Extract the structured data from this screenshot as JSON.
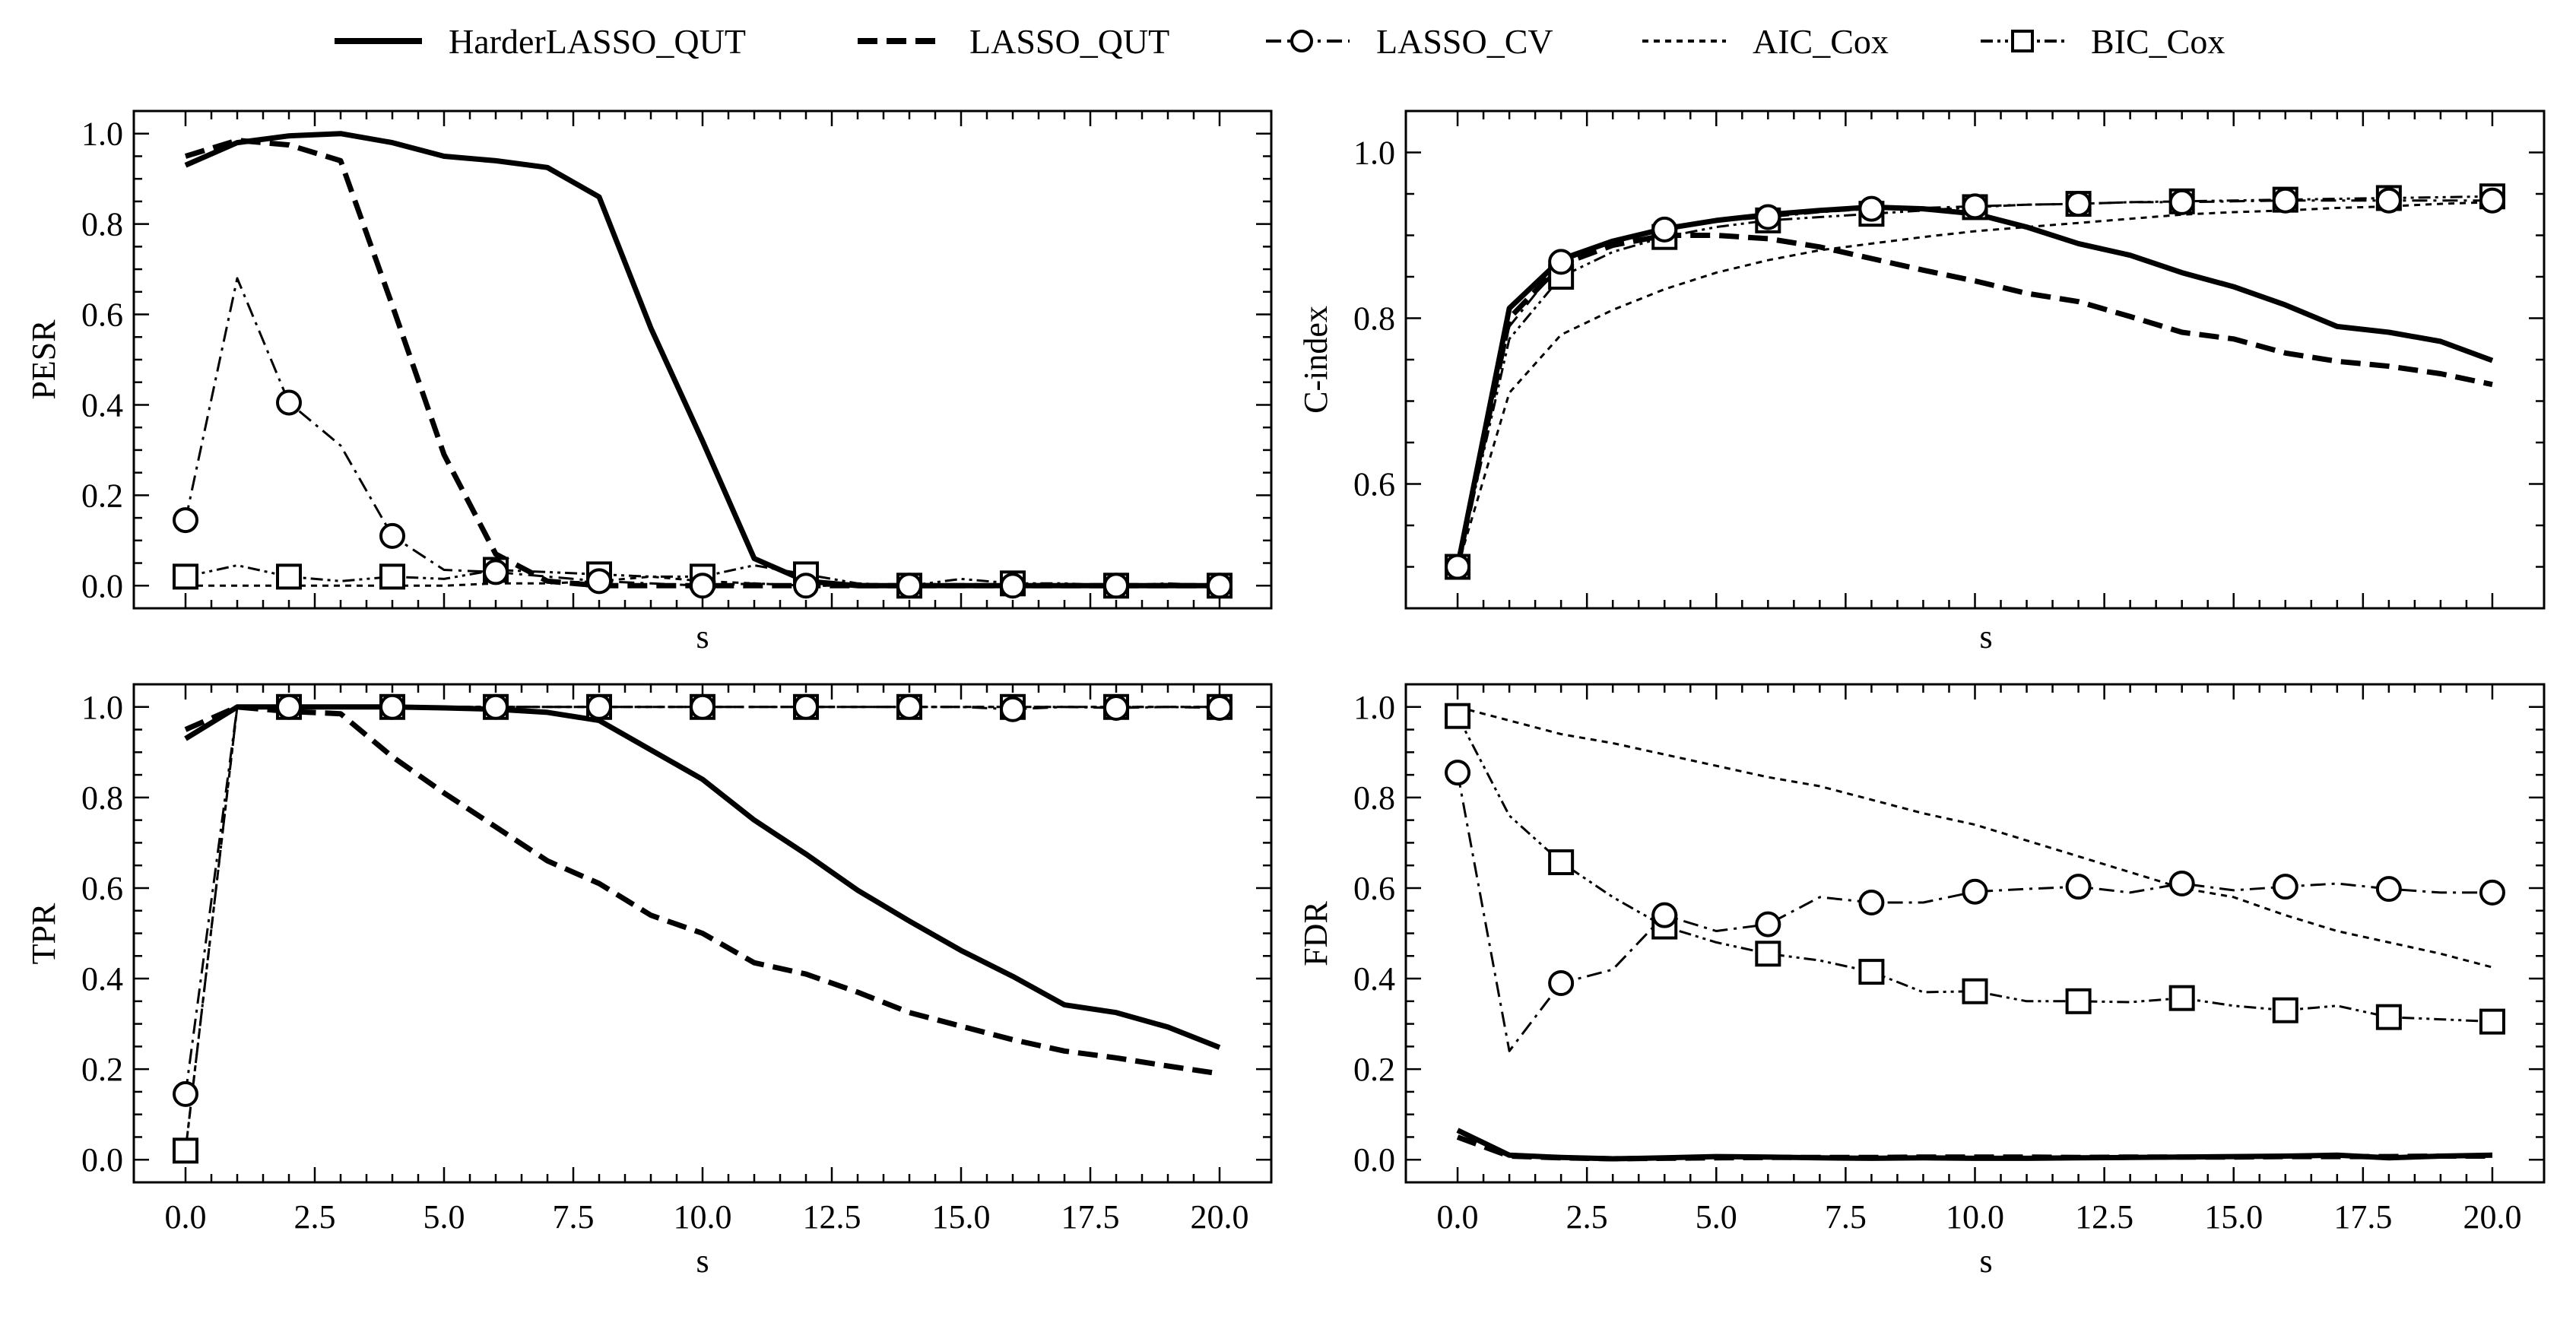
{
  "legend": {
    "position": "top-center",
    "entries": [
      {
        "key": "harder",
        "label": "HarderLASSO_QUT"
      },
      {
        "key": "lqut",
        "label": "LASSO_QUT"
      },
      {
        "key": "lcv",
        "label": "LASSO_CV"
      },
      {
        "key": "aic",
        "label": "AIC_Cox"
      },
      {
        "key": "bic",
        "label": "BIC_Cox"
      }
    ]
  },
  "chart_data": [
    {
      "id": "pesr",
      "type": "line",
      "title": "",
      "xlabel": "s",
      "ylabel": "PESR",
      "xlim": [
        -1,
        21
      ],
      "ylim": [
        -0.05,
        1.05
      ],
      "xticks": [],
      "xtick_labels": [],
      "yticks": [
        0.0,
        0.2,
        0.4,
        0.6,
        0.8,
        1.0
      ],
      "ytick_labels": [
        "0.0",
        "0.2",
        "0.4",
        "0.6",
        "0.8",
        "1.0"
      ],
      "grid": false,
      "x": [
        0,
        1,
        2,
        3,
        4,
        5,
        6,
        7,
        8,
        9,
        10,
        11,
        12,
        13,
        14,
        15,
        16,
        17,
        18,
        19,
        20
      ],
      "series": [
        {
          "name": "HarderLASSO_QUT",
          "key": "harder",
          "values": [
            0.93,
            0.98,
            0.995,
            1.0,
            0.98,
            0.95,
            0.94,
            0.925,
            0.86,
            0.57,
            0.32,
            0.06,
            0.01,
            0.0,
            0.0,
            0.0,
            0.0,
            0.0,
            0.0,
            0.0,
            0.0
          ]
        },
        {
          "name": "LASSO_QUT",
          "key": "lqut",
          "values": [
            0.95,
            0.985,
            0.975,
            0.94,
            0.62,
            0.29,
            0.07,
            0.01,
            0.0,
            0.0,
            0.0,
            0.0,
            0.0,
            0.0,
            0.0,
            0.0,
            0.0,
            0.0,
            0.0,
            0.0,
            0.0
          ]
        },
        {
          "name": "LASSO_CV",
          "key": "lcv",
          "values": [
            0.145,
            0.68,
            0.405,
            0.31,
            0.11,
            0.035,
            0.03,
            0.02,
            0.01,
            0.005,
            0.0,
            0.005,
            0.0,
            0.0,
            0.0,
            0.0,
            0.0,
            0.0,
            0.0,
            0.0,
            0.0
          ]
        },
        {
          "name": "AIC_Cox",
          "key": "aic",
          "values": [
            0.0,
            0.0,
            0.0,
            0.0,
            0.0,
            0.0,
            0.005,
            0.005,
            0.01,
            0.02,
            0.01,
            0.005,
            0.0,
            0.0,
            0.0,
            0.0,
            0.0,
            0.0,
            0.0,
            0.0,
            0.0
          ]
        },
        {
          "name": "BIC_Cox",
          "key": "bic",
          "values": [
            0.02,
            0.045,
            0.02,
            0.01,
            0.02,
            0.015,
            0.035,
            0.03,
            0.025,
            0.02,
            0.02,
            0.045,
            0.025,
            0.005,
            0.0,
            0.015,
            0.005,
            0.005,
            0.0,
            0.005,
            0.0
          ]
        }
      ]
    },
    {
      "id": "cindex",
      "type": "line",
      "title": "",
      "xlabel": "s",
      "ylabel": "C-index",
      "xlim": [
        -1,
        21
      ],
      "ylim": [
        0.45,
        1.05
      ],
      "xticks": [],
      "xtick_labels": [],
      "yticks": [
        0.6,
        0.8,
        1.0
      ],
      "ytick_labels": [
        "0.6",
        "0.8",
        "1.0"
      ],
      "grid": false,
      "x": [
        0,
        1,
        2,
        3,
        4,
        5,
        6,
        7,
        8,
        9,
        10,
        11,
        12,
        13,
        14,
        15,
        16,
        17,
        18,
        19,
        20
      ],
      "series": [
        {
          "name": "HarderLASSO_QUT",
          "key": "harder",
          "values": [
            0.5,
            0.812,
            0.871,
            0.893,
            0.908,
            0.918,
            0.925,
            0.93,
            0.934,
            0.932,
            0.926,
            0.91,
            0.89,
            0.876,
            0.855,
            0.838,
            0.816,
            0.79,
            0.783,
            0.772,
            0.749
          ]
        },
        {
          "name": "LASSO_QUT",
          "key": "lqut",
          "values": [
            0.5,
            0.8,
            0.865,
            0.888,
            0.9,
            0.9,
            0.896,
            0.886,
            0.872,
            0.858,
            0.845,
            0.83,
            0.82,
            0.802,
            0.783,
            0.775,
            0.758,
            0.748,
            0.742,
            0.733,
            0.72
          ]
        },
        {
          "name": "LASSO_CV",
          "key": "lcv",
          "values": [
            0.5,
            0.79,
            0.868,
            0.892,
            0.907,
            0.917,
            0.922,
            0.928,
            0.932,
            0.933,
            0.935,
            0.937,
            0.938,
            0.94,
            0.94,
            0.941,
            0.942,
            0.942,
            0.942,
            0.942,
            0.942
          ]
        },
        {
          "name": "AIC_Cox",
          "key": "aic",
          "values": [
            0.5,
            0.71,
            0.78,
            0.81,
            0.835,
            0.855,
            0.87,
            0.882,
            0.89,
            0.898,
            0.905,
            0.91,
            0.915,
            0.92,
            0.925,
            0.928,
            0.93,
            0.933,
            0.935,
            0.938,
            0.94
          ]
        },
        {
          "name": "BIC_Cox",
          "key": "bic",
          "values": [
            0.5,
            0.775,
            0.85,
            0.88,
            0.898,
            0.91,
            0.918,
            0.922,
            0.926,
            0.93,
            0.934,
            0.937,
            0.938,
            0.94,
            0.941,
            0.942,
            0.943,
            0.944,
            0.945,
            0.946,
            0.947
          ]
        }
      ]
    },
    {
      "id": "tpr",
      "type": "line",
      "title": "",
      "xlabel": "s",
      "ylabel": "TPR",
      "xlim": [
        -1,
        21
      ],
      "ylim": [
        -0.05,
        1.05
      ],
      "xticks": [
        0,
        2.5,
        5,
        7.5,
        10,
        12.5,
        15,
        17.5,
        20
      ],
      "xtick_labels": [
        "0.0",
        "2.5",
        "5.0",
        "7.5",
        "10.0",
        "12.5",
        "15.0",
        "17.5",
        "20.0"
      ],
      "yticks": [
        0.0,
        0.2,
        0.4,
        0.6,
        0.8,
        1.0
      ],
      "ytick_labels": [
        "0.0",
        "0.2",
        "0.4",
        "0.6",
        "0.8",
        "1.0"
      ],
      "grid": false,
      "x": [
        0,
        1,
        2,
        3,
        4,
        5,
        6,
        7,
        8,
        9,
        10,
        11,
        12,
        13,
        14,
        15,
        16,
        17,
        18,
        19,
        20
      ],
      "series": [
        {
          "name": "HarderLASSO_QUT",
          "key": "harder",
          "values": [
            0.93,
            1.0,
            1.0,
            1.0,
            1.0,
            0.998,
            0.995,
            0.988,
            0.97,
            0.905,
            0.84,
            0.75,
            0.675,
            0.595,
            0.527,
            0.462,
            0.405,
            0.342,
            0.325,
            0.293,
            0.248
          ]
        },
        {
          "name": "LASSO_QUT",
          "key": "lqut",
          "values": [
            0.95,
            1.0,
            0.99,
            0.985,
            0.89,
            0.81,
            0.735,
            0.66,
            0.61,
            0.54,
            0.5,
            0.435,
            0.41,
            0.37,
            0.325,
            0.295,
            0.265,
            0.24,
            0.225,
            0.207,
            0.19
          ]
        },
        {
          "name": "LASSO_CV",
          "key": "lcv",
          "values": [
            0.145,
            1.0,
            1.0,
            1.0,
            1.0,
            1.0,
            1.0,
            1.0,
            1.0,
            1.0,
            1.0,
            1.0,
            1.0,
            1.0,
            1.0,
            1.0,
            0.995,
            1.0,
            0.998,
            1.0,
            0.998
          ]
        },
        {
          "name": "AIC_Cox",
          "key": "aic",
          "values": [
            0.02,
            1.0,
            1.0,
            1.0,
            1.0,
            1.0,
            1.0,
            1.0,
            1.0,
            1.0,
            1.0,
            1.0,
            1.0,
            1.0,
            1.0,
            1.0,
            1.0,
            1.0,
            1.0,
            1.0,
            1.0
          ]
        },
        {
          "name": "BIC_Cox",
          "key": "bic",
          "values": [
            0.02,
            1.0,
            1.0,
            1.0,
            1.0,
            1.0,
            1.0,
            1.0,
            1.0,
            1.0,
            1.0,
            1.0,
            1.0,
            1.0,
            1.0,
            1.0,
            1.0,
            1.0,
            1.0,
            1.0,
            1.0
          ]
        }
      ]
    },
    {
      "id": "fdr",
      "type": "line",
      "title": "",
      "xlabel": "s",
      "ylabel": "FDR",
      "xlim": [
        -1,
        21
      ],
      "ylim": [
        -0.05,
        1.05
      ],
      "xticks": [
        0,
        2.5,
        5,
        7.5,
        10,
        12.5,
        15,
        17.5,
        20
      ],
      "xtick_labels": [
        "0.0",
        "2.5",
        "5.0",
        "7.5",
        "10.0",
        "12.5",
        "15.0",
        "17.5",
        "20.0"
      ],
      "yticks": [
        0.0,
        0.2,
        0.4,
        0.6,
        0.8,
        1.0
      ],
      "ytick_labels": [
        "0.0",
        "0.2",
        "0.4",
        "0.6",
        "0.8",
        "1.0"
      ],
      "grid": false,
      "x": [
        0,
        1,
        2,
        3,
        4,
        5,
        6,
        7,
        8,
        9,
        10,
        11,
        12,
        13,
        14,
        15,
        16,
        17,
        18,
        19,
        20
      ],
      "series": [
        {
          "name": "HarderLASSO_QUT",
          "key": "harder",
          "values": [
            0.065,
            0.01,
            0.005,
            0.002,
            0.004,
            0.007,
            0.006,
            0.004,
            0.003,
            0.004,
            0.003,
            0.003,
            0.004,
            0.005,
            0.006,
            0.007,
            0.008,
            0.01,
            0.004,
            0.008,
            0.01
          ]
        },
        {
          "name": "LASSO_QUT",
          "key": "lqut",
          "values": [
            0.05,
            0.008,
            0.004,
            0.002,
            0.003,
            0.004,
            0.005,
            0.005,
            0.005,
            0.006,
            0.006,
            0.006,
            0.005,
            0.006,
            0.006,
            0.006,
            0.007,
            0.007,
            0.007,
            0.008,
            0.008
          ]
        },
        {
          "name": "LASSO_CV",
          "key": "lcv",
          "values": [
            0.855,
            0.24,
            0.39,
            0.42,
            0.54,
            0.505,
            0.52,
            0.58,
            0.568,
            0.568,
            0.592,
            0.598,
            0.603,
            0.59,
            0.61,
            0.595,
            0.603,
            0.61,
            0.598,
            0.59,
            0.59
          ]
        },
        {
          "name": "AIC_Cox",
          "key": "aic",
          "values": [
            1.0,
            0.97,
            0.94,
            0.92,
            0.895,
            0.87,
            0.845,
            0.825,
            0.795,
            0.765,
            0.74,
            0.705,
            0.67,
            0.635,
            0.6,
            0.58,
            0.54,
            0.505,
            0.48,
            0.455,
            0.425
          ]
        },
        {
          "name": "BIC_Cox",
          "key": "bic",
          "values": [
            0.98,
            0.76,
            0.657,
            0.58,
            0.515,
            0.48,
            0.455,
            0.44,
            0.415,
            0.37,
            0.372,
            0.35,
            0.35,
            0.348,
            0.357,
            0.34,
            0.33,
            0.34,
            0.315,
            0.31,
            0.305
          ]
        }
      ]
    }
  ]
}
